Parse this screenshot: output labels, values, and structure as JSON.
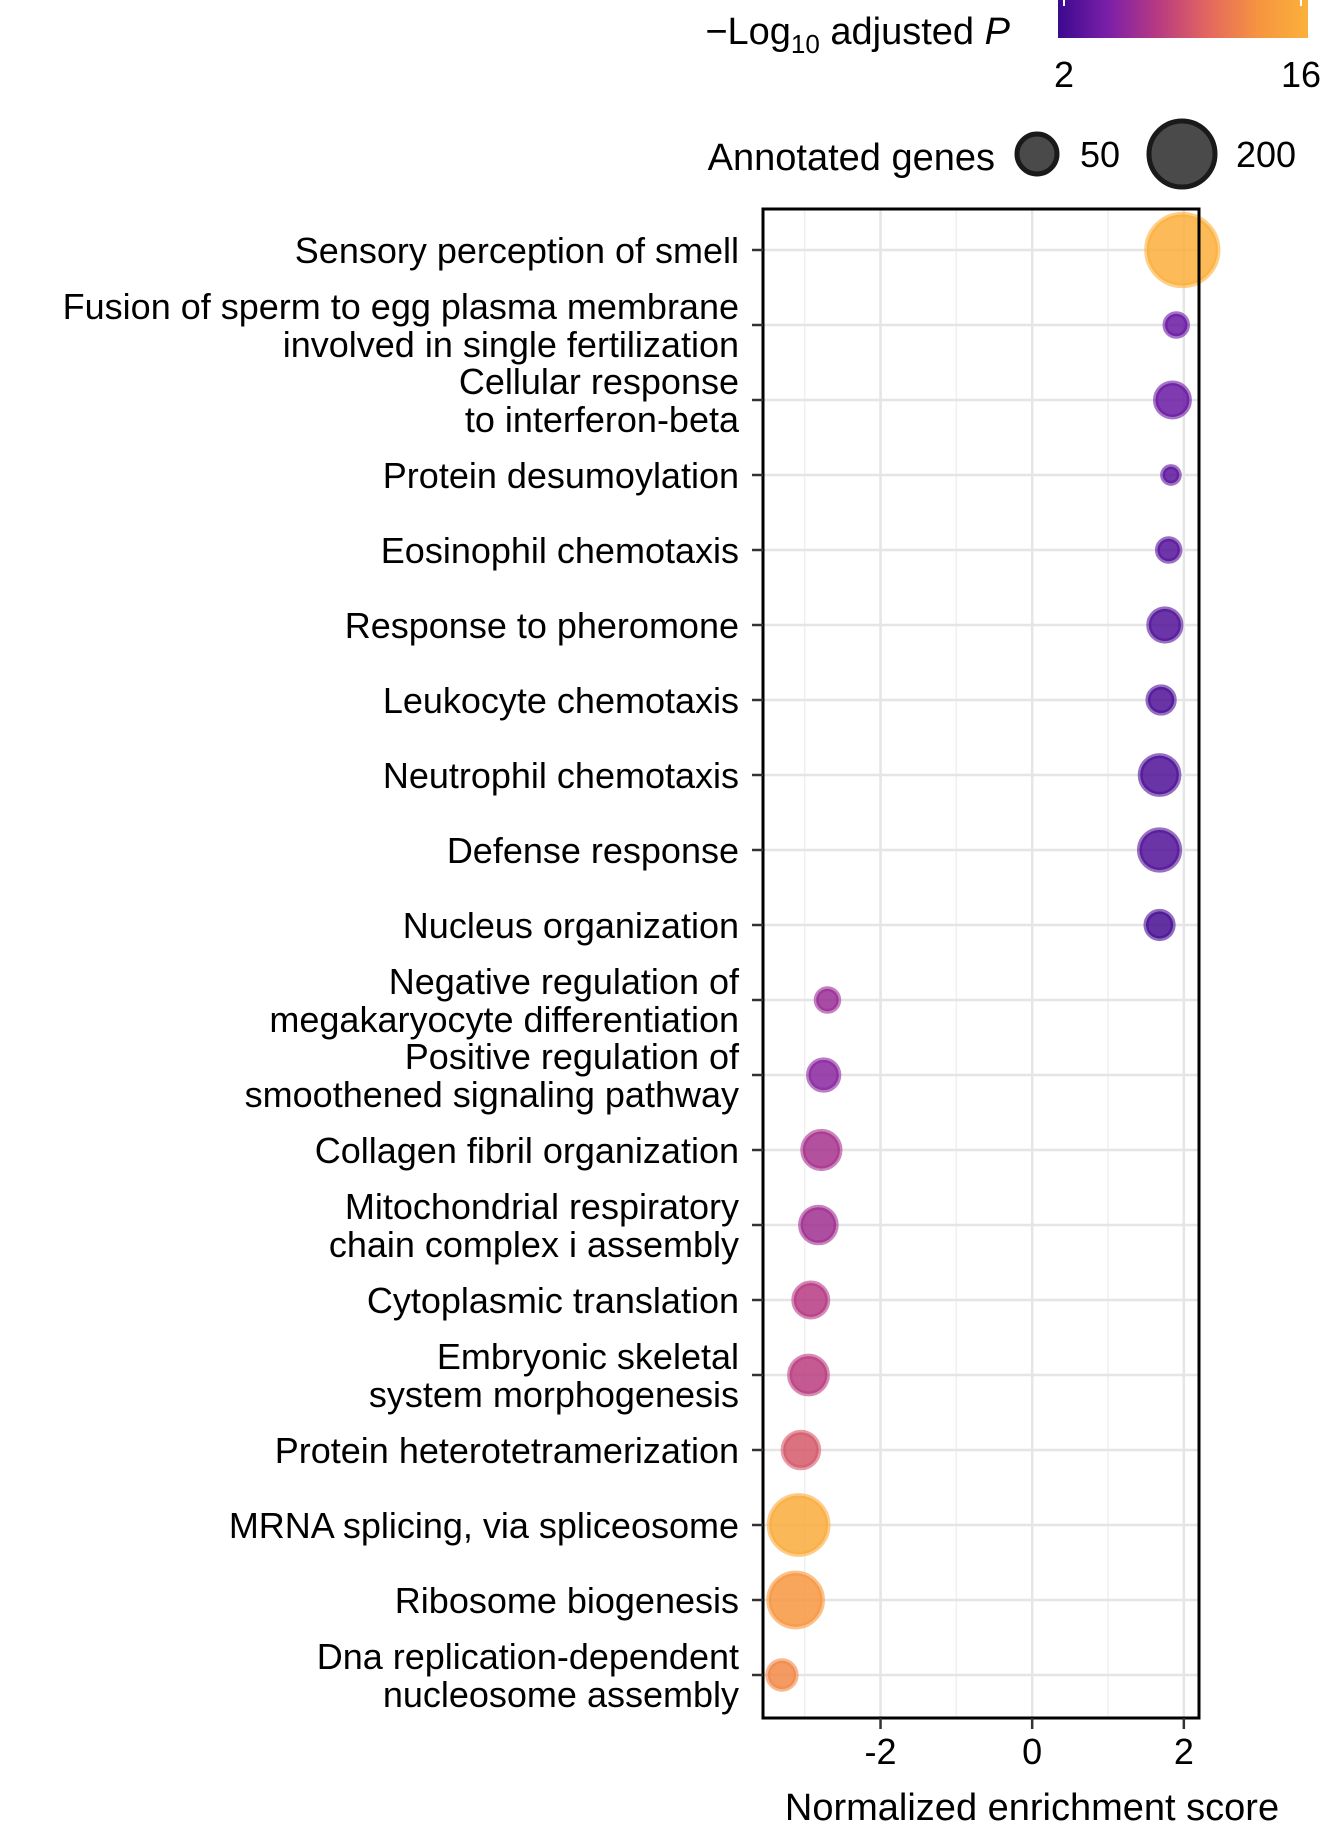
{
  "chart_data": {
    "type": "scatter",
    "title": "",
    "xlabel": "Normalized enrichment score",
    "ylabel": "",
    "xlim": [
      -3.55,
      2.2
    ],
    "x_ticks": [
      -2,
      0,
      2
    ],
    "x_tick_labels": [
      "-2",
      "0",
      "2"
    ],
    "grid": true,
    "legend_position": "top",
    "color_legend": {
      "title_prefix": "−Log",
      "title_subscript": "10",
      "title_suffix": " adjusted ",
      "title_italic": "P",
      "min": 2,
      "max": 16,
      "min_label": "2",
      "max_label": "16",
      "colors": [
        "#3b0a8f",
        "#7b1fa8",
        "#b83a82",
        "#e3675f",
        "#f69440",
        "#fbb13b"
      ]
    },
    "size_legend": {
      "title": "Annotated genes",
      "entries": [
        {
          "value": 50,
          "label": "50"
        },
        {
          "value": 200,
          "label": "200"
        }
      ]
    },
    "points": [
      {
        "term": [
          "Sensory perception of smell"
        ],
        "x": 1.98,
        "size": 220,
        "neglog10p": 15.8
      },
      {
        "term": [
          "Fusion of sperm to egg plasma membrane",
          "involved in single fertilization"
        ],
        "x": 1.9,
        "size": 22,
        "neglog10p": 4.0
      },
      {
        "term": [
          "Cellular response",
          "to interferon-beta"
        ],
        "x": 1.85,
        "size": 50,
        "neglog10p": 4.0
      },
      {
        "term": [
          "Protein desumoylation"
        ],
        "x": 1.83,
        "size": 12,
        "neglog10p": 3.5
      },
      {
        "term": [
          "Eosinophil chemotaxis"
        ],
        "x": 1.8,
        "size": 22,
        "neglog10p": 3.2
      },
      {
        "term": [
          "Response to pheromone"
        ],
        "x": 1.75,
        "size": 45,
        "neglog10p": 3.0
      },
      {
        "term": [
          "Leukocyte chemotaxis"
        ],
        "x": 1.7,
        "size": 30,
        "neglog10p": 2.8
      },
      {
        "term": [
          "Neutrophil chemotaxis"
        ],
        "x": 1.68,
        "size": 65,
        "neglog10p": 2.8
      },
      {
        "term": [
          "Defense response"
        ],
        "x": 1.68,
        "size": 70,
        "neglog10p": 3.0
      },
      {
        "term": [
          "Nucleus organization"
        ],
        "x": 1.68,
        "size": 32,
        "neglog10p": 2.5
      },
      {
        "term": [
          "Negative regulation of",
          "megakaryocyte differentiation"
        ],
        "x": -2.7,
        "size": 22,
        "neglog10p": 6.2
      },
      {
        "term": [
          "Positive regulation of",
          "smoothened signaling pathway"
        ],
        "x": -2.75,
        "size": 40,
        "neglog10p": 5.5
      },
      {
        "term": [
          "Collagen fibril organization"
        ],
        "x": -2.78,
        "size": 60,
        "neglog10p": 6.8
      },
      {
        "term": [
          "Mitochondrial respiratory",
          "chain complex i assembly"
        ],
        "x": -2.82,
        "size": 55,
        "neglog10p": 6.5
      },
      {
        "term": [
          "Cytoplasmic translation"
        ],
        "x": -2.92,
        "size": 50,
        "neglog10p": 7.5
      },
      {
        "term": [
          "Embryonic skeletal",
          "system morphogenesis"
        ],
        "x": -2.95,
        "size": 62,
        "neglog10p": 7.8
      },
      {
        "term": [
          "Protein heterotetramerization"
        ],
        "x": -3.05,
        "size": 55,
        "neglog10p": 9.5
      },
      {
        "term": [
          "MRNA splicing, via spliceosome"
        ],
        "x": -3.08,
        "size": 150,
        "neglog10p": 15.5
      },
      {
        "term": [
          "Ribosome biogenesis"
        ],
        "x": -3.12,
        "size": 125,
        "neglog10p": 13.5
      },
      {
        "term": [
          "Dna replication-dependent",
          "nucleosome assembly"
        ],
        "x": -3.3,
        "size": 35,
        "neglog10p": 12.5
      }
    ]
  }
}
